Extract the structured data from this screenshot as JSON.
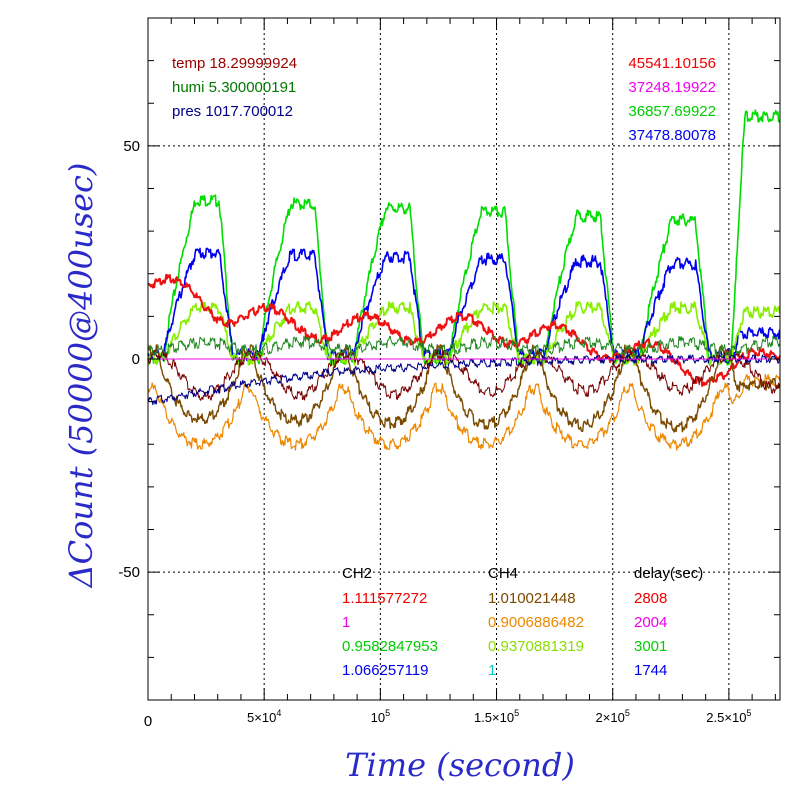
{
  "chart_data": {
    "type": "line",
    "xlabel": "Time (second)",
    "ylabel": "ΔCount (50000@400usec)",
    "xlim": [
      0,
      272000
    ],
    "ylim": [
      -80,
      80
    ],
    "x_ticks": [
      {
        "value": 0,
        "label": "0",
        "sup": ""
      },
      {
        "value": 50000,
        "label": "5×10",
        "sup": "4"
      },
      {
        "value": 100000,
        "label": "10",
        "sup": "5"
      },
      {
        "value": 150000,
        "label": "1.5×10",
        "sup": "5"
      },
      {
        "value": 200000,
        "label": "2×10",
        "sup": "5"
      },
      {
        "value": 250000,
        "label": "2.5×10",
        "sup": "5"
      }
    ],
    "y_ticks": [
      {
        "value": 50,
        "label": "50"
      },
      {
        "value": 0,
        "label": "0"
      },
      {
        "value": -50,
        "label": "-50"
      }
    ],
    "grid": true,
    "env_labels": [
      {
        "text": "temp 18.29999924",
        "color": "#990000"
      },
      {
        "text": "humi 5.300000191",
        "color": "#007700"
      },
      {
        "text": "pres 1017.700012",
        "color": "#000088"
      }
    ],
    "right_values": [
      {
        "text": "45541.10156",
        "color": "#ee0000"
      },
      {
        "text": "37248.19922",
        "color": "#ee00ee"
      },
      {
        "text": "36857.69922",
        "color": "#00cc00"
      },
      {
        "text": "37478.80078",
        "color": "#0000ee"
      }
    ],
    "table": {
      "headers": [
        "CH2",
        "CH4",
        "delay(sec)"
      ],
      "rows": [
        {
          "ch2": "1.111577272",
          "ch2_color": "#ee0000",
          "ch4": "1.010021448",
          "ch4_color": "#7a4a00",
          "delay": "2808",
          "delay_color": "#ee0000"
        },
        {
          "ch2": "1",
          "ch2_color": "#ee00ee",
          "ch4": "0.9006886482",
          "ch4_color": "#ee8800",
          "delay": "2004",
          "delay_color": "#ee00ee"
        },
        {
          "ch2": "0.9582847953",
          "ch2_color": "#00cc00",
          "ch4": "0.9370881319",
          "ch4_color": "#88dd00",
          "delay": "3001",
          "delay_color": "#00cc00"
        },
        {
          "ch2": "1.066257119",
          "ch2_color": "#0000ee",
          "ch4": "1",
          "ch4_color": "#00cccc",
          "delay": "1744",
          "delay_color": "#0000ee"
        }
      ]
    },
    "period": 41000,
    "phase": 2000,
    "jump_x": 251000,
    "series": [
      {
        "color": "#00dd00",
        "width": 1.6,
        "base": 0,
        "amp": 36,
        "shape": "plateau",
        "drift": [
          [
            0,
            1.05
          ],
          [
            272000,
            0.88
          ]
        ],
        "jump_to": 57
      },
      {
        "color": "#0000ee",
        "width": 1.6,
        "base": 1,
        "amp": 22,
        "shape": "plateau",
        "drift": [
          [
            0,
            1.1
          ],
          [
            272000,
            0.95
          ]
        ],
        "jump_to": 6
      },
      {
        "color": "#88ee00",
        "width": 1.6,
        "base": 0,
        "amp": 12,
        "shape": "plateau",
        "drift": [
          [
            0,
            1.0
          ],
          [
            272000,
            1.0
          ]
        ],
        "jump_to": 11
      },
      {
        "color": "#ee1111",
        "width": 2.0,
        "base": 5,
        "amp": 3,
        "shape": "trend",
        "trend": [
          [
            0,
            18
          ],
          [
            30000,
            12
          ],
          [
            60000,
            8
          ],
          [
            100000,
            7
          ],
          [
            150000,
            7
          ],
          [
            200000,
            3
          ],
          [
            250000,
            -4
          ],
          [
            272000,
            2
          ]
        ]
      },
      {
        "color": "#ee8800",
        "width": 1.2,
        "base": -7,
        "amp": -13,
        "shape": "dip",
        "drift": [
          [
            0,
            1.0
          ],
          [
            272000,
            1.0
          ]
        ],
        "jump_to": -5
      },
      {
        "color": "#7a4a00",
        "width": 1.4,
        "base": 2,
        "amp": -16,
        "shape": "dip",
        "drift": [
          [
            0,
            1.0
          ],
          [
            272000,
            1.15
          ]
        ],
        "jump_to": -6
      },
      {
        "color": "#770000",
        "width": 1.0,
        "base": 1,
        "amp": -10,
        "shape": "sine",
        "drift": [
          [
            0,
            1.0
          ],
          [
            272000,
            0.8
          ]
        ]
      },
      {
        "color": "#000088",
        "width": 1.0,
        "base": 0,
        "amp": 0,
        "shape": "trend",
        "trend": [
          [
            0,
            -10
          ],
          [
            40000,
            -6
          ],
          [
            80000,
            -3
          ],
          [
            140000,
            -1
          ],
          [
            200000,
            0
          ],
          [
            272000,
            0
          ]
        ]
      },
      {
        "color": "#ee00ee",
        "width": 1.0,
        "base": 0,
        "amp": 0,
        "shape": "flat"
      },
      {
        "color": "#228822",
        "width": 1.0,
        "base": 2,
        "amp": 2,
        "shape": "sine",
        "drift": [
          [
            0,
            1.0
          ],
          [
            272000,
            1.0
          ]
        ]
      }
    ]
  }
}
